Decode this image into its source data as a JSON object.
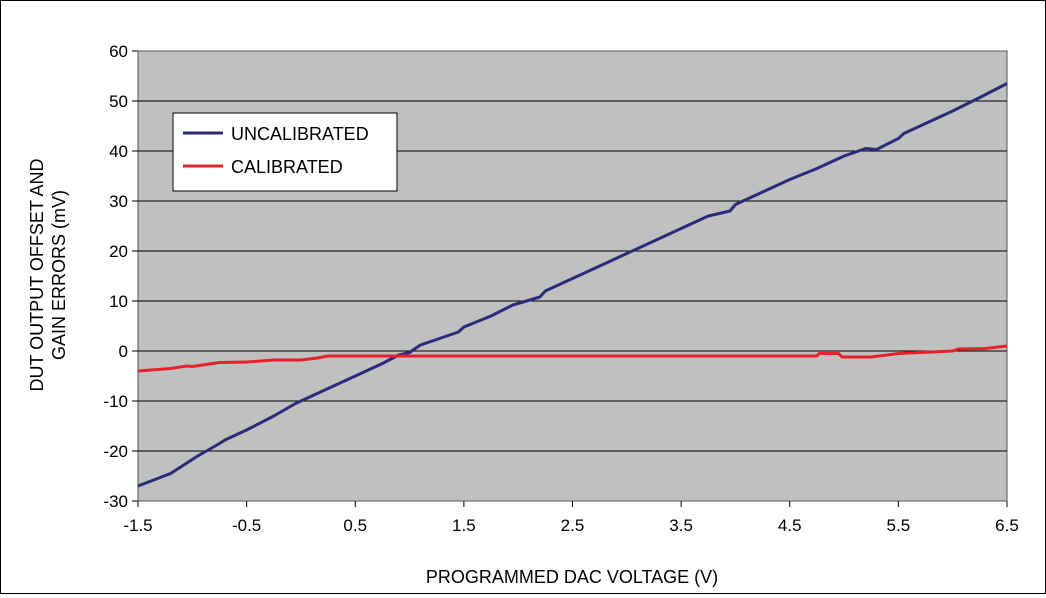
{
  "chart_data": {
    "type": "line",
    "xlabel": "PROGRAMMED DAC VOLTAGE (V)",
    "ylabel_lines": [
      "DUT OUTPUT OFFSET AND",
      "GAIN ERRORS (mV)"
    ],
    "xlim": [
      -1.5,
      6.5
    ],
    "ylim": [
      -30,
      60
    ],
    "x_ticks": [
      "-1.5",
      "-0.5",
      "0.5",
      "1.5",
      "2.5",
      "3.5",
      "4.5",
      "5.5",
      "6.5"
    ],
    "x_tick_values": [
      -1.5,
      -0.5,
      0.5,
      1.5,
      2.5,
      3.5,
      4.5,
      5.5,
      6.5
    ],
    "y_ticks": [
      "60",
      "50",
      "40",
      "30",
      "20",
      "10",
      "0",
      "-10",
      "-20",
      "-30"
    ],
    "y_tick_values": [
      60,
      50,
      40,
      30,
      20,
      10,
      0,
      -10,
      -20,
      -30
    ],
    "grid": true,
    "legend_position": "top-left",
    "plot_background": "#c0c0c0",
    "series": [
      {
        "name": "UNCALIBRATED",
        "color": "#2b2b7a",
        "points": [
          [
            -1.5,
            -27
          ],
          [
            -1.2,
            -24.5
          ],
          [
            -0.95,
            -21
          ],
          [
            -0.75,
            -18.5
          ],
          [
            -0.7,
            -17.8
          ],
          [
            -0.5,
            -15.8
          ],
          [
            -0.25,
            -13
          ],
          [
            -0.05,
            -10.5
          ],
          [
            0.0,
            -10
          ],
          [
            0.25,
            -7.5
          ],
          [
            0.5,
            -5
          ],
          [
            0.75,
            -2.5
          ],
          [
            0.9,
            -0.8
          ],
          [
            1.0,
            -0.3
          ],
          [
            1.1,
            1.2
          ],
          [
            1.25,
            2.3
          ],
          [
            1.45,
            3.8
          ],
          [
            1.5,
            4.8
          ],
          [
            1.75,
            7
          ],
          [
            1.95,
            9.2
          ],
          [
            2.2,
            10.8
          ],
          [
            2.25,
            12
          ],
          [
            2.5,
            14.5
          ],
          [
            2.75,
            17
          ],
          [
            3.0,
            19.5
          ],
          [
            3.25,
            22
          ],
          [
            3.5,
            24.5
          ],
          [
            3.75,
            27
          ],
          [
            3.95,
            28
          ],
          [
            4.0,
            29.3
          ],
          [
            4.25,
            31.8
          ],
          [
            4.5,
            34.3
          ],
          [
            4.75,
            36.5
          ],
          [
            5.0,
            39
          ],
          [
            5.2,
            40.5
          ],
          [
            5.3,
            40.3
          ],
          [
            5.5,
            42.5
          ],
          [
            5.55,
            43.5
          ],
          [
            5.75,
            45.5
          ],
          [
            6.0,
            48
          ],
          [
            6.25,
            50.7
          ],
          [
            6.5,
            53.5
          ]
        ]
      },
      {
        "name": "CALIBRATED",
        "color": "#e8202a",
        "points": [
          [
            -1.5,
            -4
          ],
          [
            -1.2,
            -3.5
          ],
          [
            -1.05,
            -3
          ],
          [
            -1.0,
            -3.1
          ],
          [
            -0.75,
            -2.3
          ],
          [
            -0.5,
            -2.2
          ],
          [
            -0.25,
            -1.8
          ],
          [
            0.0,
            -1.8
          ],
          [
            0.15,
            -1.4
          ],
          [
            0.25,
            -1.0
          ],
          [
            1.0,
            -1.0
          ],
          [
            2.0,
            -1.0
          ],
          [
            3.0,
            -1.0
          ],
          [
            4.0,
            -1.0
          ],
          [
            4.75,
            -1.0
          ],
          [
            4.77,
            -0.5
          ],
          [
            4.95,
            -0.5
          ],
          [
            4.98,
            -1.2
          ],
          [
            5.25,
            -1.2
          ],
          [
            5.5,
            -0.5
          ],
          [
            6.0,
            0.0
          ],
          [
            6.05,
            0.4
          ],
          [
            6.3,
            0.5
          ],
          [
            6.5,
            1.0
          ]
        ]
      }
    ]
  }
}
